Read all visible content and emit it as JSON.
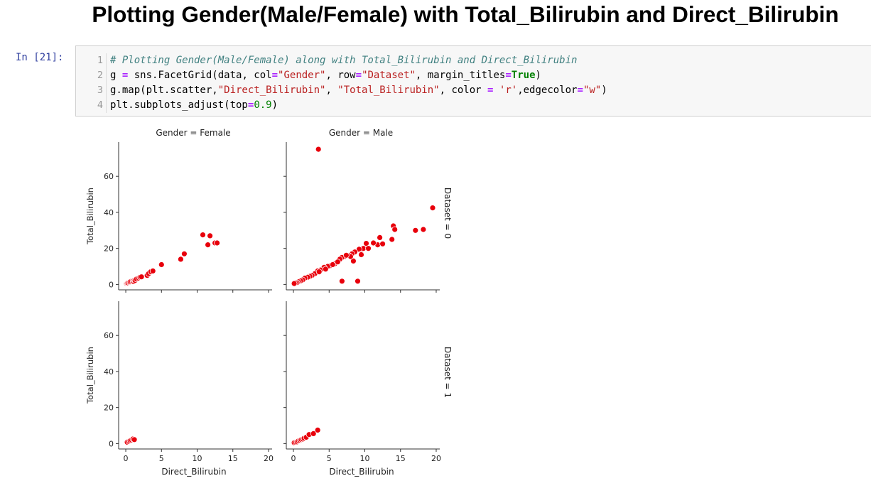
{
  "notebook": {
    "title": "Plotting Gender(Male/Female) with Total_Bilirubin and Direct_Bilirubin",
    "cell": {
      "prompt": "In [21]:",
      "line_numbers": [
        "1",
        "2",
        "3",
        "4"
      ],
      "code": [
        [
          {
            "t": "# Plotting Gender(Male/Female) along with Total_Bilirubin and Direct_Bilirubin",
            "c": "cm"
          }
        ],
        [
          {
            "t": "g ",
            "c": ""
          },
          {
            "t": "=",
            "c": "op"
          },
          {
            "t": " sns.FacetGrid(data, col",
            "c": ""
          },
          {
            "t": "=",
            "c": "op"
          },
          {
            "t": "\"Gender\"",
            "c": "st"
          },
          {
            "t": ", row",
            "c": ""
          },
          {
            "t": "=",
            "c": "op"
          },
          {
            "t": "\"Dataset\"",
            "c": "st"
          },
          {
            "t": ", margin_titles",
            "c": ""
          },
          {
            "t": "=",
            "c": "op"
          },
          {
            "t": "True",
            "c": "kw"
          },
          {
            "t": ")",
            "c": ""
          }
        ],
        [
          {
            "t": "g.map(plt.scatter,",
            "c": ""
          },
          {
            "t": "\"Direct_Bilirubin\"",
            "c": "st"
          },
          {
            "t": ", ",
            "c": ""
          },
          {
            "t": "\"Total_Bilirubin\"",
            "c": "st"
          },
          {
            "t": ", color ",
            "c": ""
          },
          {
            "t": "=",
            "c": "op"
          },
          {
            "t": " ",
            "c": ""
          },
          {
            "t": "'r'",
            "c": "st"
          },
          {
            "t": ",edgecolor",
            "c": ""
          },
          {
            "t": "=",
            "c": "op"
          },
          {
            "t": "\"w\"",
            "c": "st"
          },
          {
            "t": ")",
            "c": ""
          }
        ],
        [
          {
            "t": "plt.subplots_adjust(top",
            "c": ""
          },
          {
            "t": "=",
            "c": "op"
          },
          {
            "t": "0.9",
            "c": "nu"
          },
          {
            "t": ")",
            "c": ""
          }
        ]
      ]
    }
  },
  "chart_data": {
    "type": "scatter",
    "marker_color": "#e8000b",
    "marker_edge_color": "#ffffff",
    "xlabel": "Direct_Bilirubin",
    "ylabel": "Total_Bilirubin",
    "xlim": [
      -1,
      20.5
    ],
    "ylim": [
      -3,
      79
    ],
    "xticks": [
      0,
      5,
      10,
      15,
      20
    ],
    "yticks": [
      0,
      20,
      40,
      60
    ],
    "col_titles": [
      "Gender = Female",
      "Gender = Male"
    ],
    "row_titles": [
      "Dataset = 0",
      "Dataset = 1"
    ],
    "panels": [
      {
        "row": 0,
        "col": 0,
        "points": [
          [
            0.1,
            0.5
          ],
          [
            0.2,
            0.7
          ],
          [
            0.3,
            0.9
          ],
          [
            0.5,
            1.2
          ],
          [
            0.6,
            1.5
          ],
          [
            0.8,
            1.8
          ],
          [
            1,
            2
          ],
          [
            1.1,
            1.6
          ],
          [
            1.2,
            2.4
          ],
          [
            1.3,
            2.2
          ],
          [
            1.5,
            3
          ],
          [
            1.8,
            3.5
          ],
          [
            2,
            4
          ],
          [
            2.2,
            4.2
          ],
          [
            3,
            5
          ],
          [
            3.2,
            6
          ],
          [
            3.5,
            7
          ],
          [
            3.8,
            7.5
          ],
          [
            5,
            11
          ],
          [
            7.7,
            14
          ],
          [
            8.2,
            17
          ],
          [
            10.8,
            27.5
          ],
          [
            11.8,
            27
          ],
          [
            11.5,
            22
          ],
          [
            12.5,
            23
          ],
          [
            12.8,
            23
          ]
        ]
      },
      {
        "row": 0,
        "col": 1,
        "points": [
          [
            3.5,
            75
          ],
          [
            19.5,
            42.5
          ],
          [
            17.1,
            30
          ],
          [
            18.2,
            30.5
          ],
          [
            14,
            32.5
          ],
          [
            14.2,
            30.5
          ],
          [
            13.8,
            25
          ],
          [
            12.1,
            26
          ],
          [
            11.8,
            22
          ],
          [
            12.5,
            22.5
          ],
          [
            11.2,
            23
          ],
          [
            10.2,
            22.8
          ],
          [
            9.8,
            20
          ],
          [
            10.5,
            20
          ],
          [
            9.2,
            19.5
          ],
          [
            9.5,
            17
          ],
          [
            8.6,
            18
          ],
          [
            8.2,
            17
          ],
          [
            7.8,
            16
          ],
          [
            7.2,
            15.5
          ],
          [
            6.8,
            15
          ],
          [
            6.5,
            14
          ],
          [
            6,
            12
          ],
          [
            5.8,
            11.5
          ],
          [
            5.2,
            10.5
          ],
          [
            4.8,
            10
          ],
          [
            4.3,
            9.5
          ],
          [
            3.8,
            8
          ],
          [
            3.4,
            7.5
          ],
          [
            3,
            6
          ],
          [
            2.6,
            5
          ],
          [
            2.3,
            4.5
          ],
          [
            2,
            4
          ],
          [
            1.6,
            3.5
          ],
          [
            1.3,
            2.5
          ],
          [
            1,
            2
          ],
          [
            0.7,
            1.5
          ],
          [
            0.5,
            1
          ],
          [
            0.3,
            0.8
          ],
          [
            0.1,
            0.5
          ],
          [
            6.8,
            1.8
          ],
          [
            9,
            1.8
          ],
          [
            8.4,
            13
          ],
          [
            9.5,
            16.5
          ],
          [
            8,
            15.5
          ],
          [
            7.4,
            16.2
          ],
          [
            4.5,
            8.5
          ],
          [
            3.6,
            7
          ],
          [
            5.5,
            11
          ],
          [
            6.2,
            12.5
          ]
        ]
      },
      {
        "row": 1,
        "col": 0,
        "points": [
          [
            0.2,
            0.8
          ],
          [
            0.4,
            1.2
          ],
          [
            0.6,
            1.6
          ],
          [
            0.8,
            2
          ],
          [
            1,
            2.5
          ],
          [
            1.2,
            2.2
          ]
        ]
      },
      {
        "row": 1,
        "col": 1,
        "points": [
          [
            0.1,
            0.5
          ],
          [
            0.3,
            0.8
          ],
          [
            0.5,
            1
          ],
          [
            0.7,
            1.5
          ],
          [
            0.9,
            1.8
          ],
          [
            1.1,
            2.2
          ],
          [
            1.3,
            2.5
          ],
          [
            1.5,
            3
          ],
          [
            1.8,
            3.5
          ],
          [
            2.2,
            5
          ],
          [
            2.8,
            5.5
          ],
          [
            3.4,
            7.5
          ]
        ]
      }
    ]
  }
}
